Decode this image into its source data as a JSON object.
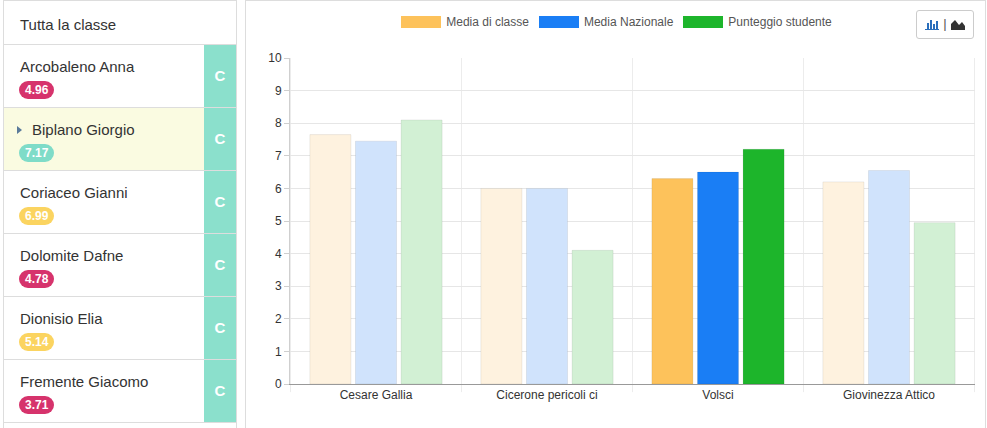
{
  "sidebar": {
    "header": "Tutta la classe",
    "selected": "Biplano Giorgio",
    "students": [
      {
        "name": "Arcobaleno Anna",
        "score": 4.96,
        "badge_color": "#d6336c",
        "grade": "C"
      },
      {
        "name": "Biplano Giorgio",
        "score": 7.17,
        "badge_color": "#7fdcc8",
        "grade": "C"
      },
      {
        "name": "Coriaceo Gianni",
        "score": 6.99,
        "badge_color": "#fbd460",
        "grade": "C"
      },
      {
        "name": "Dolomite Dafne",
        "score": 4.78,
        "badge_color": "#d6336c",
        "grade": "C"
      },
      {
        "name": "Dionisio Elia",
        "score": 5.14,
        "badge_color": "#fbd460",
        "grade": "C"
      },
      {
        "name": "Fremente Giacomo",
        "score": 3.71,
        "badge_color": "#d6336c",
        "grade": "C"
      }
    ]
  },
  "chart_toggle": "|",
  "chart_data": {
    "type": "bar",
    "categories": [
      "Cesare Gallia",
      "Cicerone pericoli ci",
      "Volsci",
      "Giovinezza Attico"
    ],
    "series": [
      {
        "name": "Media di classe",
        "color": "#fdc25b",
        "colors": [
          "#fef2df",
          "#fef2df",
          "#fdc25b",
          "#fef2df"
        ],
        "values": [
          7.65,
          6.0,
          6.3,
          6.2
        ]
      },
      {
        "name": "Media Nazionale",
        "color": "#1a7ef5",
        "colors": [
          "#d0e3fc",
          "#d0e3fc",
          "#1a7ef5",
          "#d0e3fc"
        ],
        "values": [
          7.45,
          6.0,
          6.5,
          6.55
        ]
      },
      {
        "name": "Punteggio studente",
        "color": "#1db52b",
        "colors": [
          "#d2f0d4",
          "#d2f0d4",
          "#1db52b",
          "#d2f0d4"
        ],
        "values": [
          8.1,
          4.1,
          7.2,
          4.95
        ]
      }
    ],
    "ylim": [
      0,
      10
    ],
    "yticks": [
      0,
      1,
      2,
      3,
      4,
      5,
      6,
      7,
      8,
      9,
      10
    ],
    "grid": true,
    "legend": "top"
  }
}
